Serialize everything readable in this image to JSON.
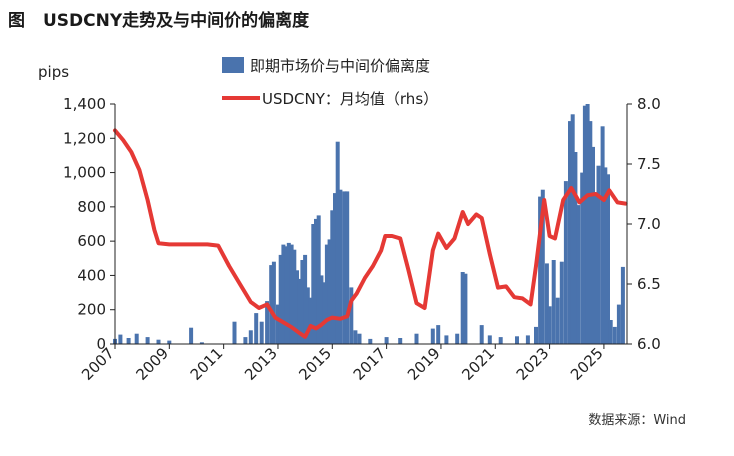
{
  "title_label": "图",
  "title": "USDCNY走势及与中间价的偏离度",
  "source": "数据来源：Wind",
  "chart_data": {
    "type": "bar+line",
    "y_left_unit": "pips",
    "y_left_ticks": [
      "0",
      "200",
      "400",
      "600",
      "800",
      "1,000",
      "1,200",
      "1,400"
    ],
    "y_left_lim": [
      0,
      1400
    ],
    "y_right_ticks": [
      "6.0",
      "6.5",
      "7.0",
      "7.5",
      "8.0"
    ],
    "y_right_lim": [
      6.0,
      8.0
    ],
    "x_ticks": [
      "2007",
      "2009",
      "2011",
      "2013",
      "2015",
      "2017",
      "2019",
      "2021",
      "2023",
      "2025"
    ],
    "x_range": [
      2007.0,
      2025.85
    ],
    "legend": [
      {
        "name": "即期市场价与中间价偏离度",
        "kind": "bar",
        "color": "#4a73ad"
      },
      {
        "name": "USDCNY：月均值（rhs）",
        "kind": "line",
        "color": "#e53935"
      }
    ],
    "bars": {
      "name": "即期市场价与中间价偏离度",
      "color": "#4a73ad",
      "values": [
        {
          "x": 2007.0,
          "y": 30
        },
        {
          "x": 2007.2,
          "y": 55
        },
        {
          "x": 2007.5,
          "y": 35
        },
        {
          "x": 2007.8,
          "y": 60
        },
        {
          "x": 2008.2,
          "y": 40
        },
        {
          "x": 2008.6,
          "y": 25
        },
        {
          "x": 2009.0,
          "y": 20
        },
        {
          "x": 2009.8,
          "y": 95
        },
        {
          "x": 2010.2,
          "y": 10
        },
        {
          "x": 2011.4,
          "y": 130
        },
        {
          "x": 2011.8,
          "y": 40
        },
        {
          "x": 2012.0,
          "y": 80
        },
        {
          "x": 2012.2,
          "y": 180
        },
        {
          "x": 2012.4,
          "y": 130
        },
        {
          "x": 2012.6,
          "y": 250
        },
        {
          "x": 2012.75,
          "y": 460
        },
        {
          "x": 2012.85,
          "y": 480
        },
        {
          "x": 2013.0,
          "y": 230
        },
        {
          "x": 2013.1,
          "y": 520
        },
        {
          "x": 2013.2,
          "y": 580
        },
        {
          "x": 2013.3,
          "y": 570
        },
        {
          "x": 2013.4,
          "y": 590
        },
        {
          "x": 2013.5,
          "y": 580
        },
        {
          "x": 2013.6,
          "y": 550
        },
        {
          "x": 2013.7,
          "y": 430
        },
        {
          "x": 2013.8,
          "y": 380
        },
        {
          "x": 2013.9,
          "y": 490
        },
        {
          "x": 2014.0,
          "y": 520
        },
        {
          "x": 2014.1,
          "y": 330
        },
        {
          "x": 2014.2,
          "y": 270
        },
        {
          "x": 2014.3,
          "y": 700
        },
        {
          "x": 2014.4,
          "y": 730
        },
        {
          "x": 2014.5,
          "y": 750
        },
        {
          "x": 2014.6,
          "y": 400
        },
        {
          "x": 2014.7,
          "y": 360
        },
        {
          "x": 2014.8,
          "y": 580
        },
        {
          "x": 2014.9,
          "y": 610
        },
        {
          "x": 2015.0,
          "y": 780
        },
        {
          "x": 2015.1,
          "y": 880
        },
        {
          "x": 2015.2,
          "y": 1180
        },
        {
          "x": 2015.3,
          "y": 900
        },
        {
          "x": 2015.45,
          "y": 890
        },
        {
          "x": 2015.55,
          "y": 890
        },
        {
          "x": 2015.7,
          "y": 330
        },
        {
          "x": 2015.85,
          "y": 80
        },
        {
          "x": 2016.0,
          "y": 60
        },
        {
          "x": 2016.4,
          "y": 30
        },
        {
          "x": 2017.0,
          "y": 40
        },
        {
          "x": 2017.5,
          "y": 35
        },
        {
          "x": 2018.1,
          "y": 60
        },
        {
          "x": 2018.7,
          "y": 90
        },
        {
          "x": 2018.9,
          "y": 110
        },
        {
          "x": 2019.2,
          "y": 50
        },
        {
          "x": 2019.6,
          "y": 60
        },
        {
          "x": 2019.8,
          "y": 420
        },
        {
          "x": 2019.9,
          "y": 410
        },
        {
          "x": 2020.5,
          "y": 110
        },
        {
          "x": 2020.8,
          "y": 50
        },
        {
          "x": 2021.2,
          "y": 40
        },
        {
          "x": 2021.8,
          "y": 45
        },
        {
          "x": 2022.2,
          "y": 50
        },
        {
          "x": 2022.5,
          "y": 100
        },
        {
          "x": 2022.65,
          "y": 860
        },
        {
          "x": 2022.75,
          "y": 900
        },
        {
          "x": 2022.9,
          "y": 470
        },
        {
          "x": 2023.0,
          "y": 220
        },
        {
          "x": 2023.15,
          "y": 490
        },
        {
          "x": 2023.3,
          "y": 270
        },
        {
          "x": 2023.45,
          "y": 480
        },
        {
          "x": 2023.6,
          "y": 950
        },
        {
          "x": 2023.75,
          "y": 1300
        },
        {
          "x": 2023.85,
          "y": 1340
        },
        {
          "x": 2023.95,
          "y": 1120
        },
        {
          "x": 2024.05,
          "y": 810
        },
        {
          "x": 2024.2,
          "y": 1000
        },
        {
          "x": 2024.3,
          "y": 1390
        },
        {
          "x": 2024.4,
          "y": 1400
        },
        {
          "x": 2024.5,
          "y": 1300
        },
        {
          "x": 2024.6,
          "y": 1150
        },
        {
          "x": 2024.7,
          "y": 880
        },
        {
          "x": 2024.8,
          "y": 1040
        },
        {
          "x": 2024.95,
          "y": 1270
        },
        {
          "x": 2025.05,
          "y": 1030
        },
        {
          "x": 2025.15,
          "y": 990
        },
        {
          "x": 2025.25,
          "y": 140
        },
        {
          "x": 2025.4,
          "y": 100
        },
        {
          "x": 2025.55,
          "y": 230
        },
        {
          "x": 2025.7,
          "y": 450
        }
      ]
    },
    "line": {
      "name": "USDCNY：月均值（rhs）",
      "color": "#e53935",
      "x": [
        2007.0,
        2007.3,
        2007.6,
        2007.9,
        2008.2,
        2008.45,
        2008.6,
        2009.0,
        2009.5,
        2010.0,
        2010.4,
        2010.8,
        2011.2,
        2011.6,
        2012.0,
        2012.3,
        2012.6,
        2012.9,
        2013.2,
        2013.5,
        2013.8,
        2014.0,
        2014.2,
        2014.4,
        2014.6,
        2014.8,
        2015.0,
        2015.3,
        2015.55,
        2015.7,
        2015.9,
        2016.2,
        2016.5,
        2016.8,
        2016.95,
        2017.2,
        2017.5,
        2017.8,
        2018.1,
        2018.4,
        2018.7,
        2018.9,
        2019.2,
        2019.5,
        2019.8,
        2020.0,
        2020.3,
        2020.5,
        2020.8,
        2021.1,
        2021.4,
        2021.7,
        2022.0,
        2022.3,
        2022.5,
        2022.8,
        2023.0,
        2023.2,
        2023.5,
        2023.8,
        2024.1,
        2024.4,
        2024.7,
        2025.0,
        2025.2,
        2025.5,
        2025.8
      ],
      "y": [
        7.78,
        7.7,
        7.6,
        7.45,
        7.2,
        6.95,
        6.84,
        6.83,
        6.83,
        6.83,
        6.83,
        6.82,
        6.65,
        6.5,
        6.35,
        6.3,
        6.33,
        6.22,
        6.18,
        6.14,
        6.09,
        6.06,
        6.15,
        6.13,
        6.16,
        6.2,
        6.22,
        6.21,
        6.23,
        6.36,
        6.42,
        6.55,
        6.65,
        6.78,
        6.9,
        6.9,
        6.88,
        6.62,
        6.34,
        6.3,
        6.78,
        6.92,
        6.8,
        6.88,
        7.1,
        7.0,
        7.08,
        7.05,
        6.75,
        6.47,
        6.48,
        6.39,
        6.38,
        6.33,
        6.65,
        7.2,
        6.9,
        6.88,
        7.2,
        7.3,
        7.18,
        7.24,
        7.25,
        7.2,
        7.28,
        7.18,
        7.17
      ]
    }
  }
}
